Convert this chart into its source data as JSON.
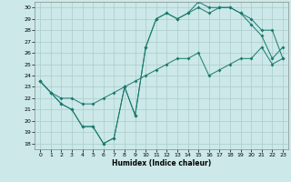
{
  "xlabel": "Humidex (Indice chaleur)",
  "x_ticks": [
    0,
    1,
    2,
    3,
    4,
    5,
    6,
    7,
    8,
    9,
    10,
    11,
    12,
    13,
    14,
    15,
    16,
    17,
    18,
    19,
    20,
    21,
    22,
    23
  ],
  "y_ticks": [
    18,
    19,
    20,
    21,
    22,
    23,
    24,
    25,
    26,
    27,
    28,
    29,
    30
  ],
  "xlim": [
    -0.5,
    23.5
  ],
  "ylim": [
    17.5,
    30.5
  ],
  "bg_color": "#cce8e8",
  "grid_color": "#aacccc",
  "line_color": "#1a7a6e",
  "line1_x": [
    0,
    1,
    2,
    3,
    4,
    5,
    6,
    7,
    8,
    9,
    10,
    11,
    12,
    13,
    14,
    15,
    16,
    17,
    18,
    19,
    20,
    21,
    22,
    23
  ],
  "line1_y": [
    23.5,
    22.5,
    21.5,
    21.0,
    19.5,
    19.5,
    18.0,
    18.5,
    23.0,
    20.5,
    26.5,
    29.0,
    29.5,
    29.0,
    29.5,
    30.5,
    30.0,
    30.0,
    30.0,
    29.5,
    29.0,
    28.0,
    28.0,
    25.5
  ],
  "line2_x": [
    0,
    1,
    2,
    3,
    4,
    5,
    6,
    7,
    8,
    9,
    10,
    11,
    12,
    13,
    14,
    15,
    16,
    17,
    18,
    19,
    20,
    21,
    22,
    23
  ],
  "line2_y": [
    23.5,
    22.5,
    21.5,
    21.0,
    19.5,
    19.5,
    18.0,
    18.5,
    23.0,
    20.5,
    26.5,
    29.0,
    29.5,
    29.0,
    29.5,
    30.0,
    29.5,
    30.0,
    30.0,
    29.5,
    28.5,
    27.5,
    25.5,
    26.5
  ],
  "line3_x": [
    0,
    1,
    2,
    3,
    4,
    5,
    6,
    7,
    8,
    9,
    10,
    11,
    12,
    13,
    14,
    15,
    16,
    17,
    18,
    19,
    20,
    21,
    22,
    23
  ],
  "line3_y": [
    23.5,
    22.5,
    22.0,
    22.0,
    21.5,
    21.5,
    22.0,
    22.5,
    23.0,
    23.5,
    24.0,
    24.5,
    25.0,
    25.5,
    25.5,
    26.0,
    24.0,
    24.5,
    25.0,
    25.5,
    25.5,
    26.5,
    25.0,
    25.5
  ]
}
